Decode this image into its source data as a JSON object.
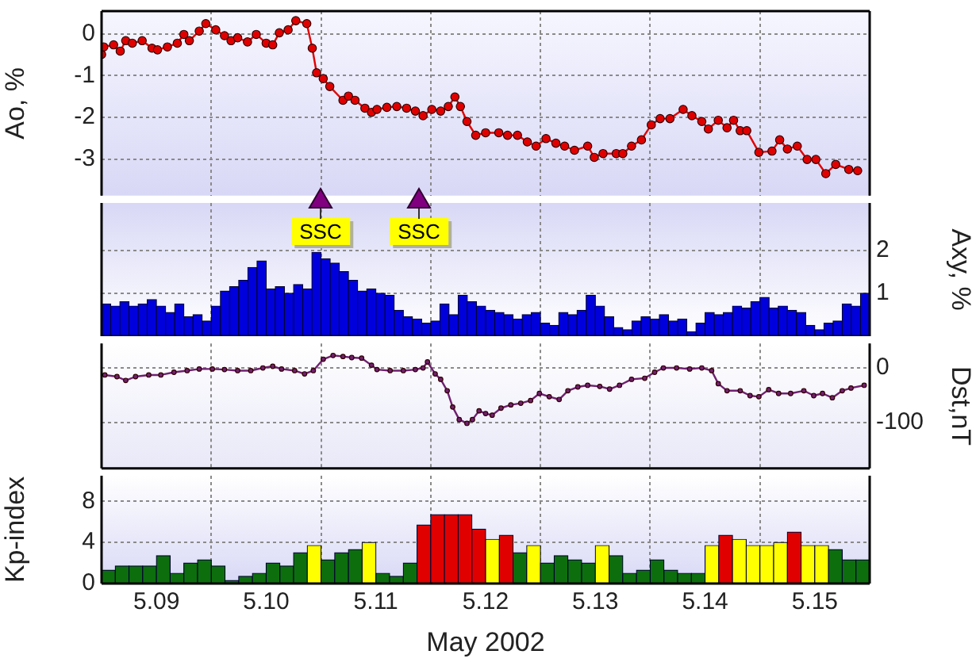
{
  "chart_data": [
    {
      "type": "line",
      "grid": true,
      "marker": "circle",
      "tick_labels": "y",
      "color": "#e00000",
      "xlim": [
        "2002-05-08T12:00",
        "2002-05-15T12:00"
      ],
      "xticks": [
        "2002-05-09",
        "2002-05-10",
        "2002-05-11",
        "2002-05-12",
        "2002-05-13",
        "2002-05-14",
        "2002-05-15"
      ],
      "ylabel": "Ao, %",
      "ylim": [
        -3.88,
        0.55
      ],
      "yticks": [
        0,
        -1,
        -2,
        -3
      ],
      "x": [
        "2002-05-08T12:00",
        "2002-05-08T12:29",
        "2002-05-08T14:38",
        "2002-05-08T16:05",
        "2002-05-08T17:17",
        "2002-05-08T18:43",
        "2002-05-08T20:53",
        "2002-05-08T23:02",
        "2002-05-09T00:14",
        "2002-05-09T02:24",
        "2002-05-09T04:34",
        "2002-05-09T06:00",
        "2002-05-09T07:12",
        "2002-05-09T09:22",
        "2002-05-09T10:48",
        "2002-05-09T12:58",
        "2002-05-09T14:53",
        "2002-05-09T16:19",
        "2002-05-09T17:46",
        "2002-05-09T19:55",
        "2002-05-09T21:50",
        "2002-05-10T00:00",
        "2002-05-10T01:26",
        "2002-05-10T02:53",
        "2002-05-10T04:48",
        "2002-05-10T06:29",
        "2002-05-10T08:53",
        "2002-05-10T10:05",
        "2002-05-10T11:02",
        "2002-05-10T12:29",
        "2002-05-10T13:55",
        "2002-05-10T16:48",
        "2002-05-10T18:00",
        "2002-05-10T19:26",
        "2002-05-10T21:36",
        "2002-05-10T23:02",
        "2002-05-11T00:14",
        "2002-05-11T02:24",
        "2002-05-11T04:34",
        "2002-05-11T06:43",
        "2002-05-11T08:38",
        "2002-05-11T10:19",
        "2002-05-11T12:14",
        "2002-05-11T14:10",
        "2002-05-11T15:50",
        "2002-05-11T17:17",
        "2002-05-11T18:29",
        "2002-05-11T19:55",
        "2002-05-11T21:50",
        "2002-05-12T00:00",
        "2002-05-12T02:53",
        "2002-05-12T04:48",
        "2002-05-12T06:58",
        "2002-05-12T09:07",
        "2002-05-12T11:02",
        "2002-05-12T13:12",
        "2002-05-12T15:22",
        "2002-05-12T17:17",
        "2002-05-12T19:26",
        "2002-05-12T22:19",
        "2002-05-12T23:46",
        "2002-05-13T01:41",
        "2002-05-13T04:34",
        "2002-05-13T06:00",
        "2002-05-13T07:55",
        "2002-05-13T10:05",
        "2002-05-13T12:14",
        "2002-05-13T14:10",
        "2002-05-13T16:19",
        "2002-05-13T19:12",
        "2002-05-13T21:07",
        "2002-05-13T23:17",
        "2002-05-14T00:43",
        "2002-05-14T02:53",
        "2002-05-14T04:48",
        "2002-05-14T06:14",
        "2002-05-14T07:41",
        "2002-05-14T09:07",
        "2002-05-14T11:46",
        "2002-05-14T14:38",
        "2002-05-14T16:19",
        "2002-05-14T18:00",
        "2002-05-14T20:10",
        "2002-05-14T22:19",
        "2002-05-15T00:14",
        "2002-05-15T02:24",
        "2002-05-15T04:34",
        "2002-05-15T07:26",
        "2002-05-15T09:22"
      ],
      "values": [
        -0.49,
        -0.31,
        -0.26,
        -0.41,
        -0.16,
        -0.22,
        -0.16,
        -0.34,
        -0.38,
        -0.31,
        -0.22,
        -0.01,
        -0.16,
        0.07,
        0.25,
        0.1,
        -0.04,
        -0.16,
        -0.09,
        -0.19,
        -0.01,
        -0.22,
        -0.26,
        0.03,
        0.1,
        0.32,
        0.25,
        -0.34,
        -0.93,
        -1.07,
        -1.26,
        -1.59,
        -1.49,
        -1.59,
        -1.78,
        -1.88,
        -1.81,
        -1.76,
        -1.74,
        -1.78,
        -1.85,
        -1.96,
        -1.81,
        -1.85,
        -1.74,
        -1.51,
        -1.74,
        -2.1,
        -2.43,
        -2.37,
        -2.37,
        -2.43,
        -2.43,
        -2.59,
        -2.69,
        -2.51,
        -2.62,
        -2.69,
        -2.79,
        -2.69,
        -2.96,
        -2.87,
        -2.87,
        -2.87,
        -2.69,
        -2.54,
        -2.18,
        -2.03,
        -2.03,
        -1.81,
        -1.96,
        -2.1,
        -2.28,
        -2.07,
        -2.25,
        -2.07,
        -2.32,
        -2.32,
        -2.84,
        -2.81,
        -2.54,
        -2.76,
        -2.69,
        -3.01,
        -3.01,
        -3.35,
        -3.13,
        -3.25,
        -3.28
      ]
    },
    {
      "type": "bar",
      "grid": true,
      "tick_labels": "y",
      "color": "#0000dd",
      "xlim": [
        "2002-05-08T12:00",
        "2002-05-15T12:00"
      ],
      "xticks": [
        "2002-05-09",
        "2002-05-10",
        "2002-05-11",
        "2002-05-12",
        "2002-05-13",
        "2002-05-14",
        "2002-05-15"
      ],
      "ylabel": "Axy, %",
      "ylim": [
        0,
        3.1
      ],
      "yticks": [
        1,
        2
      ],
      "annotations": [
        "SSC",
        "SSC"
      ],
      "x": [
        "2002-05-08T13:00",
        "2002-05-08T15:00",
        "2002-05-08T17:00",
        "2002-05-08T19:00",
        "2002-05-08T21:00",
        "2002-05-08T23:00",
        "2002-05-09T01:00",
        "2002-05-09T03:00",
        "2002-05-09T05:00",
        "2002-05-09T07:00",
        "2002-05-09T09:00",
        "2002-05-09T11:00",
        "2002-05-09T13:00",
        "2002-05-09T15:00",
        "2002-05-09T17:00",
        "2002-05-09T19:00",
        "2002-05-09T21:00",
        "2002-05-09T23:00",
        "2002-05-10T01:00",
        "2002-05-10T03:00",
        "2002-05-10T05:00",
        "2002-05-10T07:00",
        "2002-05-10T09:00",
        "2002-05-10T11:00",
        "2002-05-10T13:00",
        "2002-05-10T15:00",
        "2002-05-10T17:00",
        "2002-05-10T19:00",
        "2002-05-10T21:00",
        "2002-05-10T23:00",
        "2002-05-11T01:00",
        "2002-05-11T03:00",
        "2002-05-11T05:00",
        "2002-05-11T07:00",
        "2002-05-11T09:00",
        "2002-05-11T11:00",
        "2002-05-11T13:00",
        "2002-05-11T15:00",
        "2002-05-11T17:00",
        "2002-05-11T19:00",
        "2002-05-11T21:00",
        "2002-05-11T23:00",
        "2002-05-12T01:00",
        "2002-05-12T03:00",
        "2002-05-12T05:00",
        "2002-05-12T07:00",
        "2002-05-12T09:00",
        "2002-05-12T11:00",
        "2002-05-12T13:00",
        "2002-05-12T15:00",
        "2002-05-12T17:00",
        "2002-05-12T19:00",
        "2002-05-12T21:00",
        "2002-05-12T23:00",
        "2002-05-13T01:00",
        "2002-05-13T03:00",
        "2002-05-13T05:00",
        "2002-05-13T07:00",
        "2002-05-13T09:00",
        "2002-05-13T11:00",
        "2002-05-13T13:00",
        "2002-05-13T15:00",
        "2002-05-13T17:00",
        "2002-05-13T19:00",
        "2002-05-13T21:00",
        "2002-05-13T23:00",
        "2002-05-14T01:00",
        "2002-05-14T03:00",
        "2002-05-14T05:00",
        "2002-05-14T07:00",
        "2002-05-14T09:00",
        "2002-05-14T11:00",
        "2002-05-14T13:00",
        "2002-05-14T15:00",
        "2002-05-14T17:00",
        "2002-05-14T19:00",
        "2002-05-14T21:00",
        "2002-05-14T23:00",
        "2002-05-15T01:00",
        "2002-05-15T03:00",
        "2002-05-15T05:00",
        "2002-05-15T07:00",
        "2002-05-15T09:00",
        "2002-05-15T11:00"
      ],
      "values": [
        0.75,
        0.7,
        0.8,
        0.7,
        0.75,
        0.85,
        0.7,
        0.55,
        0.75,
        0.45,
        0.5,
        0.35,
        0.7,
        1.05,
        1.15,
        1.3,
        1.6,
        1.75,
        1.1,
        1.15,
        1.0,
        1.2,
        1.1,
        1.95,
        1.8,
        1.7,
        1.5,
        1.3,
        1.05,
        1.1,
        1.0,
        0.95,
        0.6,
        0.45,
        0.4,
        0.3,
        0.35,
        0.75,
        0.5,
        0.95,
        0.8,
        0.7,
        0.6,
        0.55,
        0.5,
        0.4,
        0.5,
        0.55,
        0.3,
        0.25,
        0.55,
        0.5,
        0.6,
        0.95,
        0.7,
        0.45,
        0.2,
        0.15,
        0.35,
        0.45,
        0.4,
        0.5,
        0.35,
        0.4,
        0.1,
        0.3,
        0.55,
        0.5,
        0.55,
        0.7,
        0.65,
        0.8,
        0.9,
        0.65,
        0.7,
        0.6,
        0.55,
        0.25,
        0.15,
        0.3,
        0.35,
        0.75,
        0.7,
        1.0
      ]
    },
    {
      "type": "line",
      "grid": true,
      "marker": "circle",
      "tick_labels": "y",
      "color": "#702070",
      "xlim": [
        "2002-05-08T12:00",
        "2002-05-15T12:00"
      ],
      "xticks": [
        "2002-05-09",
        "2002-05-10",
        "2002-05-11",
        "2002-05-12",
        "2002-05-13",
        "2002-05-14",
        "2002-05-15"
      ],
      "ylabel": "Dst,nT",
      "ylim": [
        -185,
        45
      ],
      "yticks": [
        0,
        -100
      ],
      "x": [
        "2002-05-08T12:43",
        "2002-05-08T15:22",
        "2002-05-08T17:17",
        "2002-05-08T19:26",
        "2002-05-08T22:19",
        "2002-05-09T00:58",
        "2002-05-09T03:50",
        "2002-05-09T06:43",
        "2002-05-09T09:22",
        "2002-05-09T12:14",
        "2002-05-09T14:53",
        "2002-05-09T17:46",
        "2002-05-09T20:38",
        "2002-05-09T23:17",
        "2002-05-10T01:26",
        "2002-05-10T03:22",
        "2002-05-10T06:14",
        "2002-05-10T08:24",
        "2002-05-10T10:19",
        "2002-05-10T12:29",
        "2002-05-10T14:38",
        "2002-05-10T16:48",
        "2002-05-10T18:43",
        "2002-05-10T20:53",
        "2002-05-10T23:02",
        "2002-05-11T00:14",
        "2002-05-11T03:07",
        "2002-05-11T06:00",
        "2002-05-11T08:38",
        "2002-05-11T10:19",
        "2002-05-11T11:17",
        "2002-05-11T12:58",
        "2002-05-11T14:10",
        "2002-05-11T15:36",
        "2002-05-11T16:48",
        "2002-05-11T18:14",
        "2002-05-11T19:55",
        "2002-05-11T21:07",
        "2002-05-11T22:34",
        "2002-05-12T00:00",
        "2002-05-12T01:26",
        "2002-05-12T03:22",
        "2002-05-12T05:31",
        "2002-05-12T07:41",
        "2002-05-12T09:50",
        "2002-05-12T11:46",
        "2002-05-12T13:55",
        "2002-05-12T16:05",
        "2002-05-12T18:00",
        "2002-05-12T20:10",
        "2002-05-12T22:19",
        "2002-05-13T00:58",
        "2002-05-13T03:07",
        "2002-05-13T05:17",
        "2002-05-13T07:55",
        "2002-05-13T10:48",
        "2002-05-13T12:58",
        "2002-05-13T14:53",
        "2002-05-13T17:46",
        "2002-05-13T20:38",
        "2002-05-13T23:17",
        "2002-05-14T01:26",
        "2002-05-14T02:53",
        "2002-05-14T04:48",
        "2002-05-14T07:41",
        "2002-05-14T09:50",
        "2002-05-14T11:46",
        "2002-05-14T13:55",
        "2002-05-14T16:05",
        "2002-05-14T18:43",
        "2002-05-14T21:36",
        "2002-05-14T23:46",
        "2002-05-15T01:41",
        "2002-05-15T03:50",
        "2002-05-15T06:00",
        "2002-05-15T07:55",
        "2002-05-15T10:48"
      ],
      "values": [
        -13,
        -16,
        -23,
        -16,
        -13,
        -13,
        -8,
        -5,
        -2,
        -2,
        -3,
        -5,
        -5,
        0,
        3,
        -2,
        -5,
        -11,
        -5,
        16,
        23,
        21,
        19,
        18,
        5,
        -3,
        -5,
        -5,
        -3,
        0,
        11,
        -11,
        -21,
        -42,
        -72,
        -95,
        -102,
        -95,
        -79,
        -84,
        -87,
        -74,
        -68,
        -65,
        -60,
        -47,
        -53,
        -58,
        -42,
        -35,
        -32,
        -34,
        -39,
        -32,
        -21,
        -19,
        -8,
        0,
        0,
        -2,
        0,
        -5,
        -29,
        -42,
        -42,
        -51,
        -53,
        -40,
        -47,
        -47,
        -42,
        -51,
        -47,
        -55,
        -42,
        -37,
        -32
      ]
    },
    {
      "type": "bar",
      "xlabel": "May 2002",
      "grid": true,
      "xlim": [
        "2002-05-08T12:00",
        "2002-05-15T12:00"
      ],
      "xticks": [
        {
          "value": "2002-05-09",
          "label": "5.09"
        },
        {
          "value": "2002-05-10",
          "label": "5.10"
        },
        {
          "value": "2002-05-11",
          "label": "5.11"
        },
        {
          "value": "2002-05-12",
          "label": "5.12"
        },
        {
          "value": "2002-05-13",
          "label": "5.13"
        },
        {
          "value": "2002-05-14",
          "label": "5.14"
        },
        {
          "value": "2002-05-15",
          "label": "5.15"
        }
      ],
      "ylabel": "Kp-index",
      "ylim": [
        0,
        10.5
      ],
      "yticks": [
        0,
        4,
        8
      ],
      "x": [
        "2002-05-08T13:30",
        "2002-05-08T16:30",
        "2002-05-08T19:30",
        "2002-05-08T22:30",
        "2002-05-09T01:30",
        "2002-05-09T04:30",
        "2002-05-09T07:30",
        "2002-05-09T10:30",
        "2002-05-09T13:30",
        "2002-05-09T16:30",
        "2002-05-09T19:30",
        "2002-05-09T22:30",
        "2002-05-10T01:30",
        "2002-05-10T04:30",
        "2002-05-10T07:30",
        "2002-05-10T10:30",
        "2002-05-10T13:30",
        "2002-05-10T16:30",
        "2002-05-10T19:30",
        "2002-05-10T22:30",
        "2002-05-11T01:30",
        "2002-05-11T04:30",
        "2002-05-11T07:30",
        "2002-05-11T10:30",
        "2002-05-11T13:30",
        "2002-05-11T16:30",
        "2002-05-11T19:30",
        "2002-05-11T22:30",
        "2002-05-12T01:30",
        "2002-05-12T04:30",
        "2002-05-12T07:30",
        "2002-05-12T10:30",
        "2002-05-12T13:30",
        "2002-05-12T16:30",
        "2002-05-12T19:30",
        "2002-05-12T22:30",
        "2002-05-13T01:30",
        "2002-05-13T04:30",
        "2002-05-13T07:30",
        "2002-05-13T10:30",
        "2002-05-13T13:30",
        "2002-05-13T16:30",
        "2002-05-13T19:30",
        "2002-05-13T22:30",
        "2002-05-14T01:30",
        "2002-05-14T04:30",
        "2002-05-14T07:30",
        "2002-05-14T10:30",
        "2002-05-14T13:30",
        "2002-05-14T16:30",
        "2002-05-14T19:30",
        "2002-05-14T22:30",
        "2002-05-15T01:30",
        "2002-05-15T04:30",
        "2002-05-15T07:30",
        "2002-05-15T10:30"
      ],
      "values": [
        1.3,
        1.7,
        1.7,
        1.7,
        2.7,
        1.0,
        2.0,
        2.3,
        1.7,
        0.3,
        0.7,
        1.0,
        2.0,
        1.7,
        3.0,
        3.7,
        2.3,
        3.0,
        3.3,
        4.0,
        1.0,
        0.7,
        2.0,
        5.7,
        6.7,
        6.7,
        6.7,
        5.3,
        4.3,
        4.7,
        3.0,
        3.7,
        2.0,
        2.7,
        2.3,
        2.0,
        3.7,
        2.7,
        1.0,
        1.3,
        2.3,
        1.3,
        1.0,
        1.0,
        3.7,
        4.7,
        4.3,
        3.7,
        3.7,
        4.0,
        5.0,
        3.7,
        3.7,
        3.3,
        2.3,
        2.3
      ],
      "colors": [
        "#0d6e0d",
        "#0d6e0d",
        "#0d6e0d",
        "#0d6e0d",
        "#0d6e0d",
        "#0d6e0d",
        "#0d6e0d",
        "#0d6e0d",
        "#0d6e0d",
        "#0d6e0d",
        "#0d6e0d",
        "#0d6e0d",
        "#0d6e0d",
        "#0d6e0d",
        "#0d6e0d",
        "#ffff00",
        "#0d6e0d",
        "#0d6e0d",
        "#0d6e0d",
        "#ffff00",
        "#0d6e0d",
        "#0d6e0d",
        "#0d6e0d",
        "#e00000",
        "#e00000",
        "#e00000",
        "#e00000",
        "#e00000",
        "#ffff00",
        "#e00000",
        "#0d6e0d",
        "#ffff00",
        "#0d6e0d",
        "#0d6e0d",
        "#0d6e0d",
        "#0d6e0d",
        "#ffff00",
        "#0d6e0d",
        "#0d6e0d",
        "#0d6e0d",
        "#0d6e0d",
        "#0d6e0d",
        "#0d6e0d",
        "#0d6e0d",
        "#ffff00",
        "#e00000",
        "#ffff00",
        "#ffff00",
        "#ffff00",
        "#ffff00",
        "#e00000",
        "#ffff00",
        "#ffff00",
        "#0d6e0d",
        "#0d6e0d",
        "#0d6e0d"
      ]
    }
  ]
}
